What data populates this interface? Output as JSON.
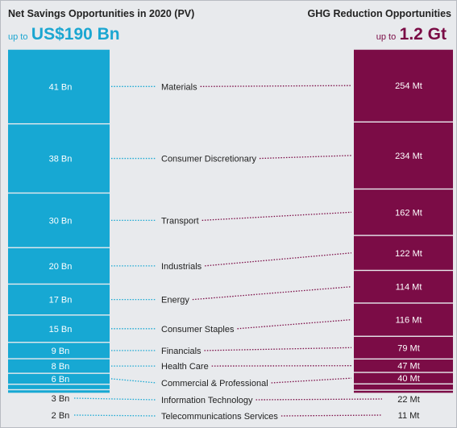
{
  "colors": {
    "savings": "#17a8d3",
    "ghg": "#7b0c46",
    "background": "#e8eaed",
    "connector_left": "#17a8d3",
    "connector_right": "#7b0c46"
  },
  "header": {
    "left_title": "Net Savings Opportunities in 2020 (PV)",
    "left_prefix": "up to",
    "left_total": "US$190 Bn",
    "right_title": "GHG Reduction Opportunities",
    "right_prefix": "up to",
    "right_total": "1.2 Gt"
  },
  "chart_data": {
    "type": "bar",
    "layout": "paired stacked columns",
    "categories": [
      "Materials",
      "Consumer Discretionary",
      "Transport",
      "Industrials",
      "Energy",
      "Consumer Staples",
      "Financials",
      "Health Care",
      "Commercial & Professional",
      "Information Technology",
      "Telecommunications Services"
    ],
    "series": [
      {
        "name": "Net Savings Opportunities in 2020 (PV)",
        "unit": "Bn",
        "values": [
          41,
          38,
          30,
          20,
          17,
          15,
          9,
          8,
          6,
          3,
          2
        ],
        "labels": [
          "41 Bn",
          "38 Bn",
          "30 Bn",
          "20 Bn",
          "17 Bn",
          "15 Bn",
          "9 Bn",
          "8 Bn",
          "6 Bn",
          "3 Bn",
          "2 Bn"
        ]
      },
      {
        "name": "GHG Reduction Opportunities",
        "unit": "Mt",
        "values": [
          254,
          234,
          162,
          122,
          114,
          116,
          79,
          47,
          40,
          22,
          11
        ],
        "labels": [
          "254 Mt",
          "234 Mt",
          "162 Mt",
          "122 Mt",
          "114 Mt",
          "116 Mt",
          "79 Mt",
          "47 Mt",
          "40 Mt",
          "22 Mt",
          "11 Mt"
        ]
      }
    ]
  }
}
